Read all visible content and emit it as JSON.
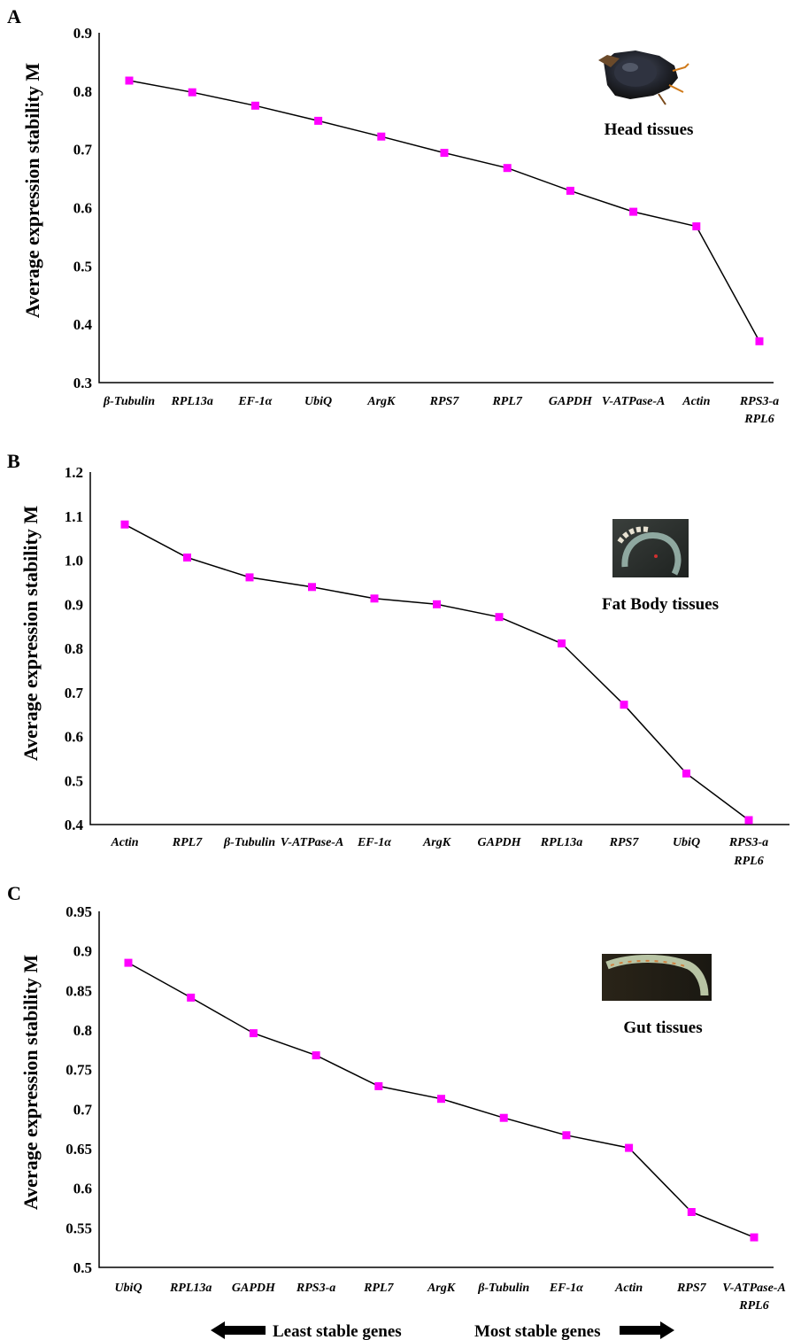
{
  "chart_data": [
    {
      "panel": "A",
      "type": "line",
      "categories": [
        "β-Tubulin",
        "RPL13a",
        "EF-1α",
        "UbiQ",
        "ArgK",
        "RPS7",
        "RPL7",
        "GAPDH",
        "V-ATPase-A",
        "Actin",
        "RPS3-a RPL6"
      ],
      "values": [
        0.818,
        0.798,
        0.775,
        0.749,
        0.722,
        0.694,
        0.668,
        0.629,
        0.593,
        0.568,
        0.371
      ],
      "ylabel": "Average expression stability M",
      "ylim": [
        0.3,
        0.9
      ],
      "yticks": [
        "0.3",
        "0.4",
        "0.5",
        "0.6",
        "0.7",
        "0.8",
        "0.9"
      ],
      "annotation": "Head tissues",
      "image": "beetle head photo",
      "marker_color": "#ff00ff"
    },
    {
      "panel": "B",
      "type": "line",
      "categories": [
        "Actin",
        "RPL7",
        "β-Tubulin",
        "V-ATPase-A",
        "EF-1α",
        "ArgK",
        "GAPDH",
        "RPL13a",
        "RPS7",
        "UbiQ",
        "RPS3-a RPL6"
      ],
      "values": [
        1.081,
        1.006,
        0.961,
        0.939,
        0.913,
        0.9,
        0.871,
        0.811,
        0.672,
        0.516,
        0.41
      ],
      "ylabel": "Average expression stability M",
      "ylim": [
        0.4,
        1.2
      ],
      "yticks": [
        "0.4",
        "0.5",
        "0.6",
        "0.7",
        "0.8",
        "0.9",
        "1.0",
        "1.1",
        "1.2"
      ],
      "annotation": "Fat Body tissues",
      "image": "fat body tissue photo",
      "marker_color": "#ff00ff"
    },
    {
      "panel": "C",
      "type": "line",
      "categories": [
        "UbiQ",
        "RPL13a",
        "GAPDH",
        "RPS3-a",
        "RPL7",
        "ArgK",
        "β-Tubulin",
        "EF-1α",
        "Actin",
        "RPS7",
        "V-ATPase-A RPL6"
      ],
      "values": [
        0.885,
        0.841,
        0.796,
        0.768,
        0.729,
        0.713,
        0.689,
        0.667,
        0.651,
        0.57,
        0.538
      ],
      "ylabel": "Average expression stability M",
      "ylim": [
        0.5,
        0.95
      ],
      "yticks": [
        "0.5",
        "0.55",
        "0.6",
        "0.65",
        "0.7",
        "0.75",
        "0.8",
        "0.85",
        "0.9",
        "0.95"
      ],
      "annotation": "Gut tissues",
      "image": "gut tissue photo",
      "marker_color": "#ff00ff"
    }
  ],
  "footer": {
    "least_stable": "Least stable genes",
    "most_stable": "Most stable genes"
  },
  "icons": {
    "left_arrow": "arrow-left-icon",
    "right_arrow": "arrow-right-icon"
  }
}
